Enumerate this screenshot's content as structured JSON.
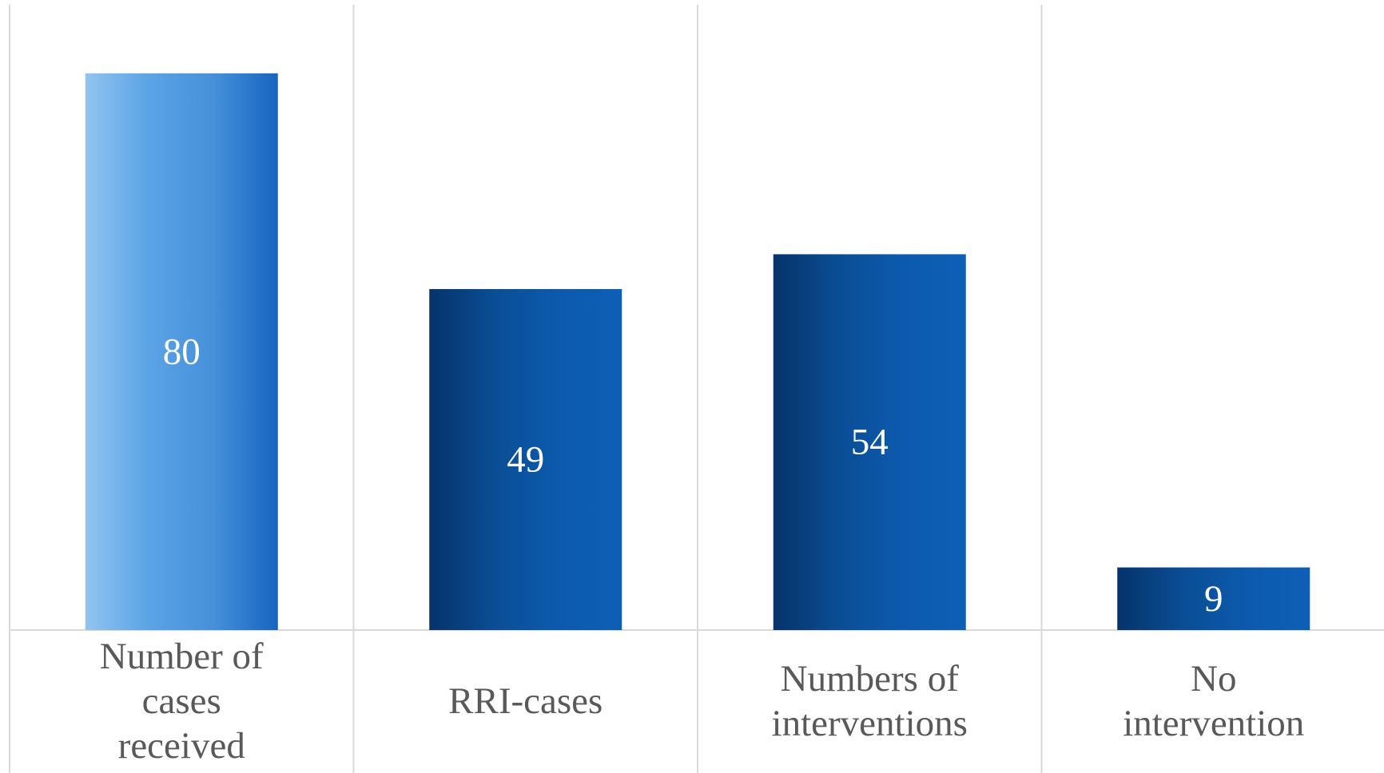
{
  "chart_data": {
    "type": "bar",
    "title": "",
    "xlabel": "",
    "ylabel": "",
    "categories": [
      [
        "Number of",
        "cases",
        "received"
      ],
      [
        "RRI-cases"
      ],
      [
        "Numbers of",
        "interventions"
      ],
      [
        "No",
        "intervention"
      ]
    ],
    "values": [
      80,
      49,
      54,
      9
    ],
    "value_labels": [
      "80",
      "49",
      "54",
      "9"
    ],
    "ylim": [
      0,
      90
    ],
    "grid": "vertical category separators",
    "legend": "none",
    "colors": {
      "first_bar": [
        "#93c4ef",
        "#5aa3e6",
        "#4690da",
        "#1565c0"
      ],
      "other_bars": [
        "#06336a",
        "#0a4d94",
        "#0c5aae",
        "#0d5fb6"
      ],
      "grid": "#d9d9d9",
      "label_text": "#595959",
      "value_text": "#ffffff"
    }
  }
}
